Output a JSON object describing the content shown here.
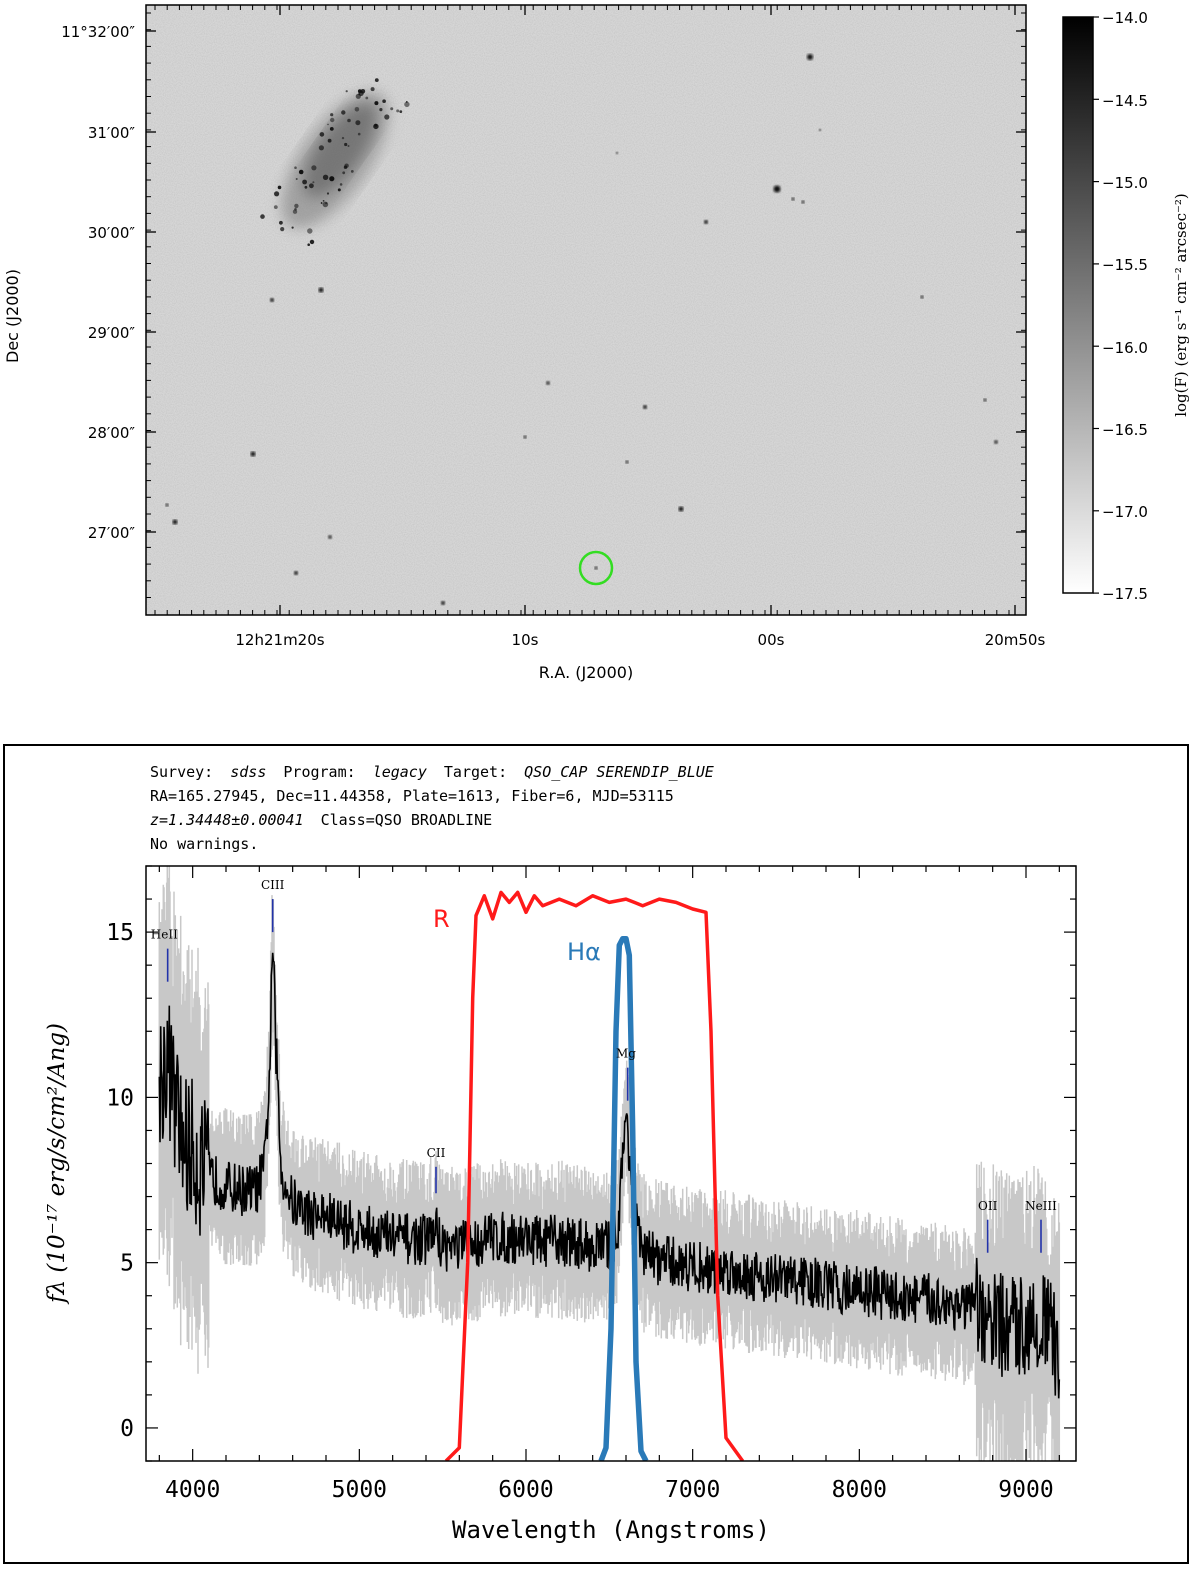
{
  "chart_data": [
    {
      "type": "image",
      "panel": "top",
      "xlabel": "R.A. (J2000)",
      "ylabel": "Dec (J2000)",
      "x_ticks": [
        "12h21m20s",
        "10s",
        "00s",
        "20m50s"
      ],
      "y_ticks": [
        "11°32′00″",
        "31′00″",
        "30′00″",
        "29′00″",
        "28′00″",
        "27′00″"
      ],
      "colorbar": {
        "label": "log(F) (erg s⁻¹ cm⁻² arcsec⁻²)",
        "ticks": [
          "−14.0",
          "−14.5",
          "−15.0",
          "−15.5",
          "−16.0",
          "−16.5",
          "−17.0",
          "−17.5"
        ],
        "range": [
          -17.5,
          -14.0
        ],
        "colormap": "gray_r"
      },
      "marker": {
        "shape": "circle",
        "color": "#33dd22"
      }
    },
    {
      "type": "line",
      "panel": "bottom",
      "header": {
        "line1": {
          "survey_label": "Survey:",
          "survey": "sdss",
          "program_label": "Program:",
          "program": "legacy",
          "target_label": "Target:",
          "target": "QSO_CAP SERENDIP_BLUE"
        },
        "line2": "RA=165.27945, Dec=11.44358, Plate=1613, Fiber=6, MJD=53115",
        "line3": {
          "z": "z=1.34448±0.00041",
          "class": "Class=QSO BROADLINE"
        },
        "line4": "No warnings."
      },
      "xlabel": "Wavelength (Angstroms)",
      "ylabel": "fλ (10⁻¹⁷ erg/s/cm²/Ang)",
      "xlim": [
        3720,
        9300
      ],
      "ylim": [
        -1,
        17
      ],
      "x_ticks": [
        4000,
        5000,
        6000,
        7000,
        8000,
        9000
      ],
      "y_ticks": [
        0,
        5,
        10,
        15
      ],
      "spectrum": {
        "color": "#000000",
        "error_color": "#c8c8c8",
        "points": [
          [
            3800,
            10.5
          ],
          [
            3850,
            11.2
          ],
          [
            3900,
            9.5
          ],
          [
            3950,
            8.6
          ],
          [
            4000,
            8.4
          ],
          [
            4050,
            7.9
          ],
          [
            4100,
            7.6
          ],
          [
            4200,
            7.3
          ],
          [
            4300,
            7.2
          ],
          [
            4380,
            7.2
          ],
          [
            4430,
            7.8
          ],
          [
            4460,
            10.5
          ],
          [
            4480,
            14.6
          ],
          [
            4500,
            11.5
          ],
          [
            4530,
            7.8
          ],
          [
            4600,
            6.8
          ],
          [
            4700,
            6.5
          ],
          [
            4800,
            6.4
          ],
          [
            4900,
            6.2
          ],
          [
            5000,
            6.0
          ],
          [
            5100,
            5.9
          ],
          [
            5200,
            5.8
          ],
          [
            5300,
            5.7
          ],
          [
            5400,
            5.7
          ],
          [
            5460,
            6.0
          ],
          [
            5500,
            5.5
          ],
          [
            5600,
            5.5
          ],
          [
            5700,
            5.6
          ],
          [
            5800,
            5.8
          ],
          [
            5900,
            5.7
          ],
          [
            6000,
            5.8
          ],
          [
            6100,
            5.6
          ],
          [
            6200,
            5.7
          ],
          [
            6300,
            5.6
          ],
          [
            6400,
            5.5
          ],
          [
            6500,
            5.5
          ],
          [
            6550,
            6.0
          ],
          [
            6580,
            8.0
          ],
          [
            6600,
            9.6
          ],
          [
            6630,
            7.8
          ],
          [
            6660,
            6.1
          ],
          [
            6700,
            5.3
          ],
          [
            6800,
            5.1
          ],
          [
            6900,
            5.0
          ],
          [
            7000,
            4.9
          ],
          [
            7100,
            4.8
          ],
          [
            7200,
            4.8
          ],
          [
            7300,
            4.7
          ],
          [
            7400,
            4.6
          ],
          [
            7500,
            4.5
          ],
          [
            7600,
            4.5
          ],
          [
            7700,
            4.4
          ],
          [
            7800,
            4.3
          ],
          [
            7900,
            4.2
          ],
          [
            8000,
            4.2
          ],
          [
            8100,
            4.1
          ],
          [
            8200,
            4.0
          ],
          [
            8300,
            3.9
          ],
          [
            8400,
            3.9
          ],
          [
            8500,
            3.8
          ],
          [
            8600,
            3.7
          ],
          [
            8700,
            3.6
          ],
          [
            8760,
            3.0
          ],
          [
            8800,
            3.2
          ],
          [
            8900,
            3.0
          ],
          [
            9000,
            3.2
          ],
          [
            9100,
            3.3
          ],
          [
            9150,
            2.8
          ],
          [
            9200,
            2.0
          ]
        ]
      },
      "series": [
        {
          "name": "R",
          "color": "#ff1a1a",
          "points": [
            [
              5520,
              -1.0
            ],
            [
              5600,
              -0.6
            ],
            [
              5650,
              5.0
            ],
            [
              5680,
              13.0
            ],
            [
              5700,
              15.5
            ],
            [
              5750,
              16.1
            ],
            [
              5800,
              15.4
            ],
            [
              5850,
              16.2
            ],
            [
              5900,
              15.9
            ],
            [
              5950,
              16.2
            ],
            [
              6000,
              15.6
            ],
            [
              6050,
              16.1
            ],
            [
              6100,
              15.8
            ],
            [
              6200,
              16.0
            ],
            [
              6300,
              15.8
            ],
            [
              6400,
              16.1
            ],
            [
              6500,
              15.9
            ],
            [
              6600,
              16.0
            ],
            [
              6700,
              15.8
            ],
            [
              6800,
              16.0
            ],
            [
              6900,
              15.9
            ],
            [
              7000,
              15.7
            ],
            [
              7080,
              15.6
            ],
            [
              7110,
              12.0
            ],
            [
              7150,
              4.0
            ],
            [
              7200,
              -0.3
            ],
            [
              7300,
              -1.0
            ]
          ]
        },
        {
          "name": "Hα",
          "color": "#2a7ab8",
          "points": [
            [
              6450,
              -1.0
            ],
            [
              6480,
              -0.6
            ],
            [
              6510,
              3.0
            ],
            [
              6540,
              12.0
            ],
            [
              6560,
              14.6
            ],
            [
              6580,
              14.8
            ],
            [
              6600,
              14.8
            ],
            [
              6620,
              14.3
            ],
            [
              6640,
              9.0
            ],
            [
              6660,
              2.0
            ],
            [
              6690,
              -0.7
            ],
            [
              6720,
              -1.0
            ]
          ]
        }
      ],
      "line_labels": [
        {
          "text": "HeII",
          "x": 3830,
          "y": 14.8
        },
        {
          "text": "CIII",
          "x": 4480,
          "y": 16.3
        },
        {
          "text": "CII",
          "x": 5460,
          "y": 8.2
        },
        {
          "text": "Mg",
          "x": 6600,
          "y": 11.2
        },
        {
          "text": "OII",
          "x": 8770,
          "y": 6.6
        },
        {
          "text": "NeIII",
          "x": 9090,
          "y": 6.6
        }
      ],
      "line_markers": [
        {
          "x": 3850,
          "y": [
            14.5,
            13.5
          ]
        },
        {
          "x": 4480,
          "y": [
            16.0,
            15.0
          ]
        },
        {
          "x": 5460,
          "y": [
            7.9,
            7.1
          ]
        },
        {
          "x": 6610,
          "y": [
            10.9,
            9.9
          ]
        },
        {
          "x": 8770,
          "y": [
            6.3,
            5.3
          ]
        },
        {
          "x": 9090,
          "y": [
            6.3,
            5.3
          ]
        }
      ],
      "marker_color": "#2233aa"
    }
  ]
}
